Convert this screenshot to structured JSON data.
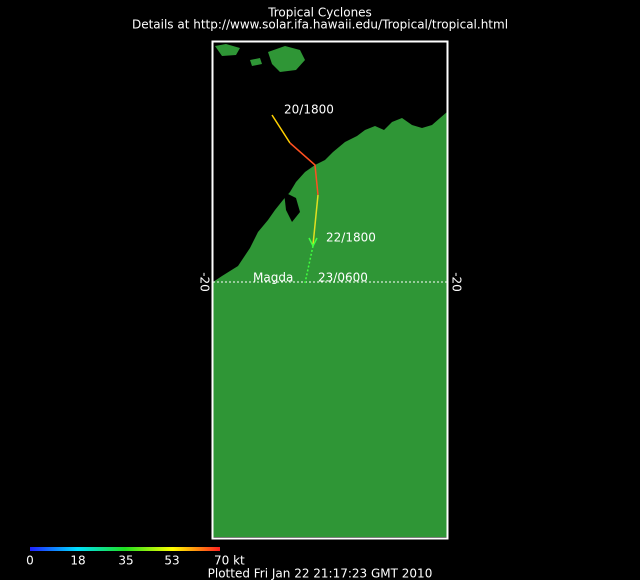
{
  "header": {
    "title": "Tropical Cyclones",
    "details": "Details at http://www.solar.ifa.hawaii.edu/Tropical/tropical.html"
  },
  "map": {
    "lat_left": "-20",
    "lat_right": "-20",
    "track_labels": [
      "20/1800",
      "22/1800",
      "23/0600"
    ],
    "storm_name": "Magda"
  },
  "legend": {
    "ticks": [
      "0",
      "18",
      "35",
      "53",
      "70 kt"
    ]
  },
  "footer": {
    "plotted": "Plotted Fri Jan 22 21:17:23 GMT 2010"
  }
}
